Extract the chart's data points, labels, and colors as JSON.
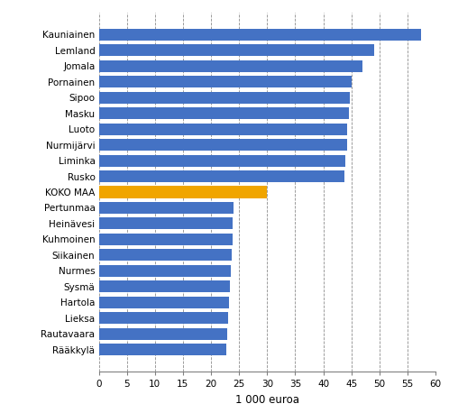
{
  "categories": [
    "Kauniainen",
    "Lemland",
    "Jomala",
    "Pornainen",
    "Sipoo",
    "Masku",
    "Luoto",
    "Nurmijärvi",
    "Liminka",
    "Rusko",
    "KOKO MAA",
    "Pertunmaa",
    "Heinävesi",
    "Kuhmoinen",
    "Siikainen",
    "Nurmes",
    "Sysmä",
    "Hartola",
    "Lieksa",
    "Rautavaara",
    "Rääkkylä"
  ],
  "values": [
    57.5,
    49.0,
    47.0,
    45.0,
    44.8,
    44.5,
    44.3,
    44.2,
    44.0,
    43.8,
    30.0,
    24.0,
    23.9,
    23.8,
    23.7,
    23.6,
    23.4,
    23.2,
    23.0,
    22.9,
    22.7
  ],
  "bar_colors": [
    "#4472C4",
    "#4472C4",
    "#4472C4",
    "#4472C4",
    "#4472C4",
    "#4472C4",
    "#4472C4",
    "#4472C4",
    "#4472C4",
    "#4472C4",
    "#F0A500",
    "#4472C4",
    "#4472C4",
    "#4472C4",
    "#4472C4",
    "#4472C4",
    "#4472C4",
    "#4472C4",
    "#4472C4",
    "#4472C4",
    "#4472C4"
  ],
  "xlabel": "1 000 euroa",
  "xlim": [
    0,
    60
  ],
  "xticks": [
    0,
    5,
    10,
    15,
    20,
    25,
    30,
    35,
    40,
    45,
    50,
    55,
    60
  ],
  "grid_color": "#808080",
  "background_color": "#ffffff",
  "figsize": [
    4.98,
    4.58
  ],
  "dpi": 100,
  "bar_height": 0.75,
  "label_fontsize": 7.5,
  "xlabel_fontsize": 8.5
}
